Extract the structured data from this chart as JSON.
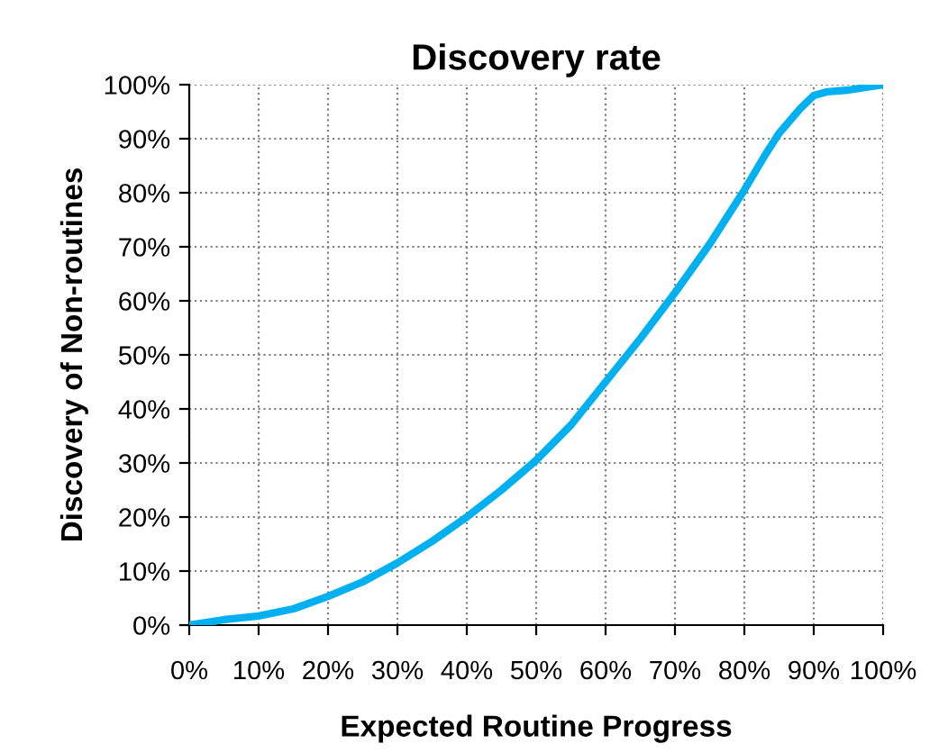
{
  "chart_data": {
    "type": "line",
    "title": "Discovery rate",
    "xlabel": "Expected Routine Progress",
    "ylabel": "Discovery of Non-routines",
    "x": [
      0,
      5,
      10,
      15,
      20,
      25,
      30,
      35,
      40,
      45,
      50,
      55,
      60,
      65,
      70,
      75,
      80,
      83,
      85,
      88,
      90,
      92,
      95,
      100
    ],
    "series": [
      {
        "color": "#00b0f0",
        "values": [
          0,
          1,
          1.7,
          3,
          5.3,
          8,
          11.5,
          15.5,
          20,
          25,
          30.5,
          37,
          45,
          53,
          61.5,
          70.5,
          80.5,
          87,
          91,
          95.5,
          98,
          98.7,
          99,
          100
        ]
      }
    ],
    "xlim": [
      0,
      100
    ],
    "ylim": [
      0,
      100
    ],
    "xticks": [
      {
        "value": 0,
        "label": "0%"
      },
      {
        "value": 10,
        "label": "10%"
      },
      {
        "value": 20,
        "label": "20%"
      },
      {
        "value": 30,
        "label": "30%"
      },
      {
        "value": 40,
        "label": "40%"
      },
      {
        "value": 50,
        "label": "50%"
      },
      {
        "value": 60,
        "label": "60%"
      },
      {
        "value": 70,
        "label": "70%"
      },
      {
        "value": 80,
        "label": "80%"
      },
      {
        "value": 90,
        "label": "90%"
      },
      {
        "value": 100,
        "label": "100%"
      }
    ],
    "yticks": [
      {
        "value": 0,
        "label": "0%"
      },
      {
        "value": 10,
        "label": "10%"
      },
      {
        "value": 20,
        "label": "20%"
      },
      {
        "value": 30,
        "label": "30%"
      },
      {
        "value": 40,
        "label": "40%"
      },
      {
        "value": 50,
        "label": "50%"
      },
      {
        "value": 60,
        "label": "60%"
      },
      {
        "value": 70,
        "label": "70%"
      },
      {
        "value": 80,
        "label": "80%"
      },
      {
        "value": 90,
        "label": "90%"
      },
      {
        "value": 100,
        "label": "100%"
      }
    ],
    "grid": true,
    "marker": "none",
    "line_style": "solid"
  }
}
